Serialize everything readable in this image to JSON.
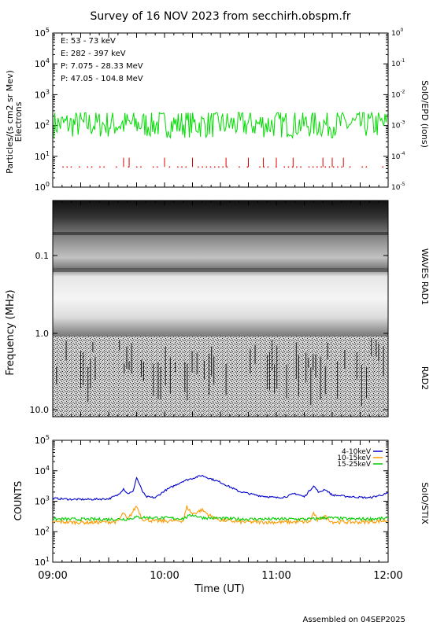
{
  "title": "Survey of 16 NOV 2023 from secchirh.obspm.fr",
  "footer": "Assembled on 04SEP2025",
  "colors": {
    "green": "#00dd00",
    "red": "#dd0000",
    "black": "#000000",
    "blue": "#0000cc",
    "orange": "#ff9900",
    "stix_green": "#00cc00"
  },
  "chart_data": [
    {
      "type": "line",
      "panel": "SolO/EPD",
      "ylabel": "Particles/(s cm2 sr Mev)",
      "ylabel2": "Electrons",
      "right_label": "SolO/EPD (ions)",
      "yscale": "log",
      "ylim": [
        1,
        100000
      ],
      "y_ticks": [
        {
          "m": "10",
          "e": "0"
        },
        {
          "m": "10",
          "e": "1"
        },
        {
          "m": "10",
          "e": "2"
        },
        {
          "m": "10",
          "e": "3"
        },
        {
          "m": "10",
          "e": "4"
        },
        {
          "m": "10",
          "e": "5"
        }
      ],
      "right_ylim": [
        1e-05,
        1
      ],
      "right_ticks": [
        {
          "m": "10",
          "e": "-5"
        },
        {
          "m": "10",
          "e": "-4"
        },
        {
          "m": "10",
          "e": "-3"
        },
        {
          "m": "10",
          "e": "-2"
        },
        {
          "m": "10",
          "e": "-1"
        },
        {
          "m": "10",
          "e": "0"
        }
      ],
      "xlim": [
        "09:00",
        "12:00"
      ],
      "legend": [
        {
          "label": "E: 53 - 73 keV",
          "color": "#00dd00"
        },
        {
          "label": "E: 282 - 397 keV",
          "color": "#dd0000"
        },
        {
          "label": "P: 7.075 - 28.33 MeV",
          "color": "#000000"
        },
        {
          "label": "P: 47.05 - 104.8 MeV",
          "color": "#0000cc"
        }
      ],
      "series": [
        {
          "name": "E: 53 - 73 keV",
          "color": "#00dd00",
          "mean": 110,
          "min": 40,
          "max": 260
        },
        {
          "name": "E: 282 - 397 keV",
          "color": "#dd0000",
          "baseline": 4.5,
          "spikes_max": 9
        }
      ]
    },
    {
      "type": "heatmap",
      "panel": "WAVES RAD1 / RAD2",
      "ylabel": "Frequency (MHz)",
      "y_ticks": [
        "0.1",
        "1.0",
        "10.0"
      ],
      "right_labels": [
        "WAVES RAD1",
        "RAD2"
      ],
      "xlim": [
        "09:00",
        "12:00"
      ]
    },
    {
      "type": "line",
      "panel": "SolO/STIX",
      "ylabel": "COUNTS",
      "right_label": "SolO/STIX",
      "yscale": "log",
      "ylim": [
        10,
        100000
      ],
      "y_ticks": [
        {
          "m": "10",
          "e": "1"
        },
        {
          "m": "10",
          "e": "2"
        },
        {
          "m": "10",
          "e": "3"
        },
        {
          "m": "10",
          "e": "4"
        },
        {
          "m": "10",
          "e": "5"
        }
      ],
      "xlabel": "Time (UT)",
      "x_ticks": [
        "09:00",
        "10:00",
        "11:00",
        "12:00"
      ],
      "legend": [
        {
          "label": "4-10keV",
          "color": "#0000cc"
        },
        {
          "label": "10-15keV",
          "color": "#ff9900"
        },
        {
          "label": "15-25keV",
          "color": "#00cc00"
        }
      ],
      "series": [
        {
          "name": "4-10keV",
          "color": "#0000cc",
          "x_min": [
            0,
            10,
            20,
            30,
            35,
            38,
            40,
            43,
            45,
            48,
            50,
            55,
            60,
            70,
            80,
            90,
            100,
            110,
            120,
            125,
            130,
            135,
            138,
            140,
            143,
            146,
            150,
            160,
            170,
            180
          ],
          "values": [
            1250,
            1150,
            1150,
            1200,
            1600,
            2600,
            1800,
            2000,
            6000,
            2200,
            1400,
            1300,
            2200,
            4600,
            7000,
            4200,
            2100,
            1550,
            1300,
            1400,
            1800,
            1400,
            2300,
            3200,
            1900,
            2500,
            1600,
            1400,
            1300,
            1800
          ]
        },
        {
          "name": "10-15keV",
          "color": "#ff9900",
          "x_min": [
            0,
            20,
            35,
            38,
            40,
            45,
            48,
            55,
            70,
            72,
            75,
            80,
            85,
            90,
            100,
            120,
            138,
            140,
            142,
            146,
            150,
            165,
            180
          ],
          "values": [
            210,
            200,
            215,
            420,
            240,
            700,
            260,
            220,
            230,
            650,
            380,
            520,
            320,
            240,
            210,
            205,
            210,
            420,
            240,
            320,
            210,
            205,
            230
          ]
        },
        {
          "name": "15-25keV",
          "color": "#00cc00",
          "x_min": [
            0,
            20,
            40,
            45,
            70,
            75,
            80,
            100,
            140,
            146,
            160,
            180
          ],
          "values": [
            260,
            255,
            260,
            300,
            270,
            360,
            290,
            260,
            260,
            290,
            260,
            270
          ]
        }
      ]
    }
  ]
}
